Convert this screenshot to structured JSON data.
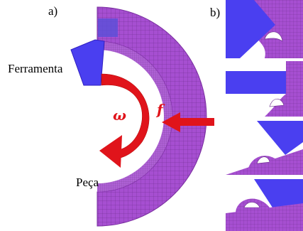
{
  "panel_a": {
    "label": "a)",
    "tool_label": "Ferramenta",
    "workpiece_label": "Peça",
    "rotation_symbol": "ω",
    "feed_symbol": "f"
  },
  "panel_b": {
    "label": "b)"
  },
  "colors": {
    "workpiece": "#a64fd1",
    "tool": "#4a3ff0",
    "arrow": "#e0141b",
    "mesh_line": "#6a2a8a"
  }
}
